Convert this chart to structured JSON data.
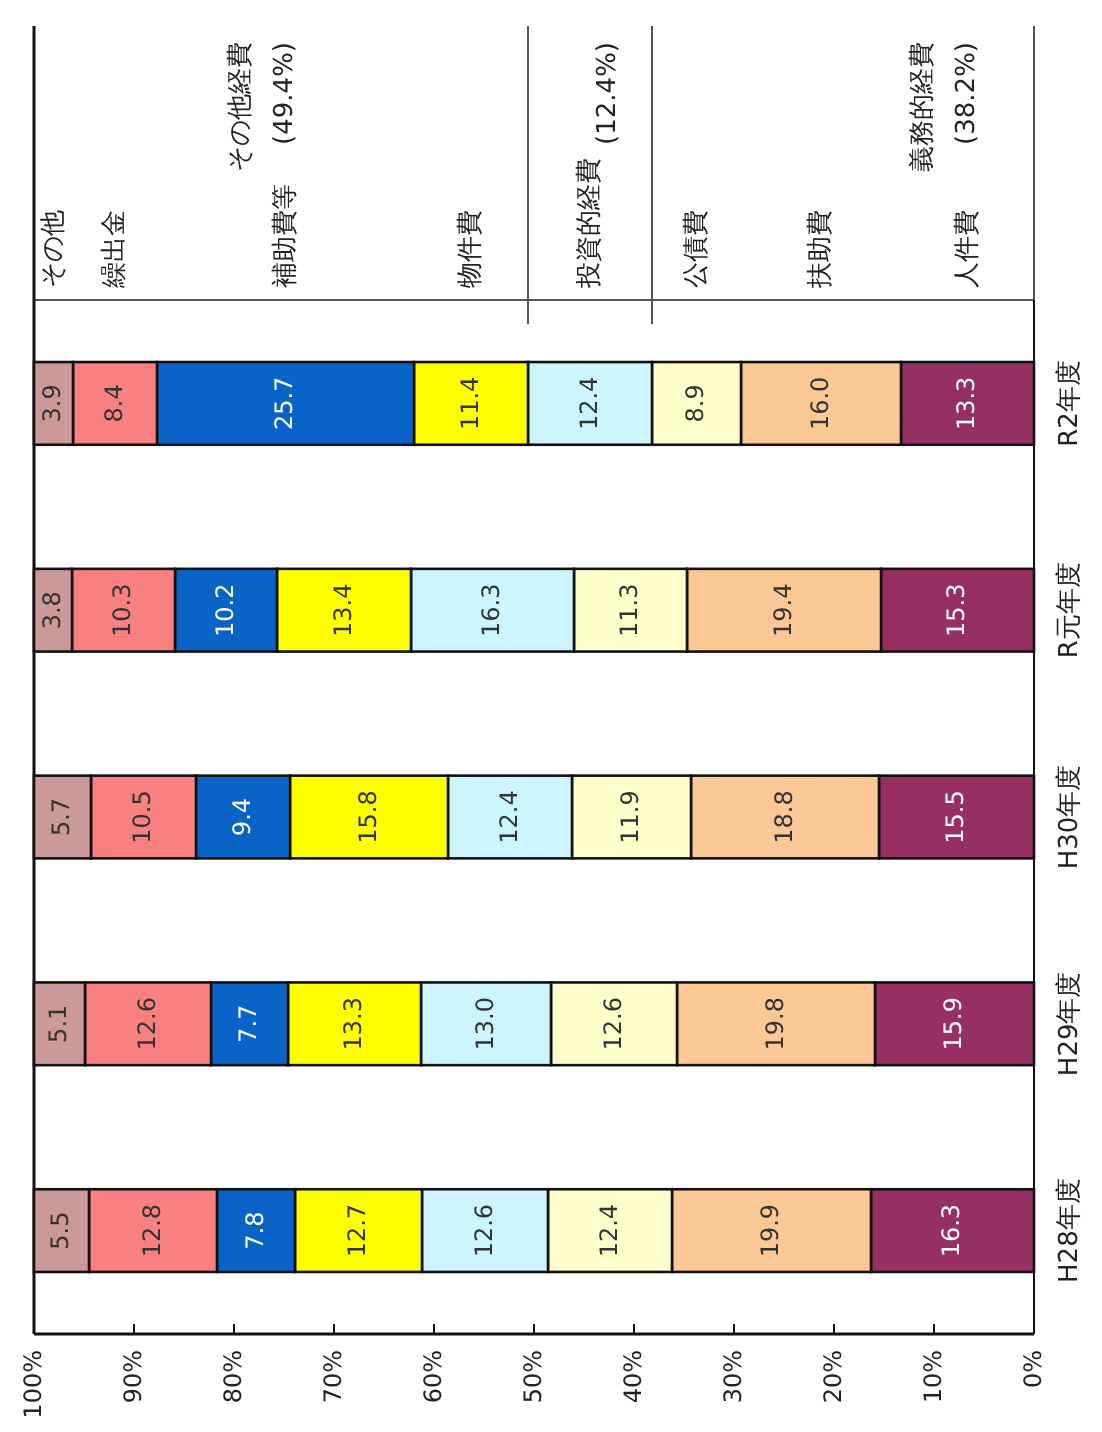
{
  "chart_data": {
    "type": "bar",
    "orientation": "horizontal",
    "stacked": true,
    "categories": [
      "R2年度",
      "R元年度",
      "H30年度",
      "H29年度",
      "H28年度"
    ],
    "series": [
      {
        "name": "人件費",
        "color": "#962f62",
        "values": [
          13.3,
          15.3,
          15.5,
          15.9,
          16.3
        ],
        "value_labels": [
          "13.3",
          "15.3",
          "15.5",
          "15.9",
          "16.3"
        ]
      },
      {
        "name": "扶助費",
        "color": "#fcc896",
        "values": [
          16.0,
          19.4,
          18.8,
          19.8,
          19.9
        ],
        "value_labels": [
          "16.0",
          "19.4",
          "18.8",
          "19.8",
          "19.9"
        ]
      },
      {
        "name": "公債費",
        "color": "#ffffcc",
        "values": [
          8.9,
          11.3,
          11.9,
          12.6,
          12.4
        ],
        "value_labels": [
          "8.9",
          "11.3",
          "11.9",
          "12.6",
          "12.4"
        ]
      },
      {
        "name": "投資的経費",
        "color": "#ccf5ff",
        "values": [
          12.4,
          16.3,
          12.4,
          13.0,
          12.6
        ],
        "value_labels": [
          "12.4",
          "16.3",
          "12.4",
          "13.0",
          "12.6"
        ]
      },
      {
        "name": "物件費",
        "color": "#ffff00",
        "values": [
          11.4,
          13.4,
          15.8,
          13.3,
          12.7
        ],
        "value_labels": [
          "11.4",
          "13.4",
          "15.8",
          "13.3",
          "12.7"
        ]
      },
      {
        "name": "補助費等",
        "color": "#0a64c8",
        "values": [
          25.7,
          10.2,
          9.4,
          7.7,
          7.8
        ],
        "value_labels": [
          "25.7",
          "10.2",
          "9.4",
          "7.7",
          "7.8"
        ]
      },
      {
        "name": "繰出金",
        "color": "#f88080",
        "values": [
          8.4,
          10.3,
          10.5,
          12.6,
          12.8
        ],
        "value_labels": [
          "8.4",
          "10.3",
          "10.5",
          "12.6",
          "12.8"
        ]
      },
      {
        "name": "その他",
        "color": "#cc9999",
        "values": [
          3.9,
          3.8,
          5.7,
          5.1,
          5.5
        ],
        "value_labels": [
          "3.9",
          "3.8",
          "5.7",
          "5.1",
          "5.5"
        ]
      }
    ],
    "xlim": [
      100,
      0
    ],
    "xticks": [
      {
        "value": 100,
        "label": "100%"
      },
      {
        "value": 90,
        "label": "90%"
      },
      {
        "value": 80,
        "label": "80%"
      },
      {
        "value": 70,
        "label": "70%"
      },
      {
        "value": 60,
        "label": "60%"
      },
      {
        "value": 50,
        "label": "50%"
      },
      {
        "value": 40,
        "label": "40%"
      },
      {
        "value": 30,
        "label": "30%"
      },
      {
        "value": 20,
        "label": "20%"
      },
      {
        "value": 10,
        "label": "10%"
      },
      {
        "value": 0,
        "label": "0%"
      }
    ],
    "annotations": [
      "その他経費 (49.4%)",
      "(12.4%)",
      "義務的経費 (38.2%)"
    ]
  }
}
